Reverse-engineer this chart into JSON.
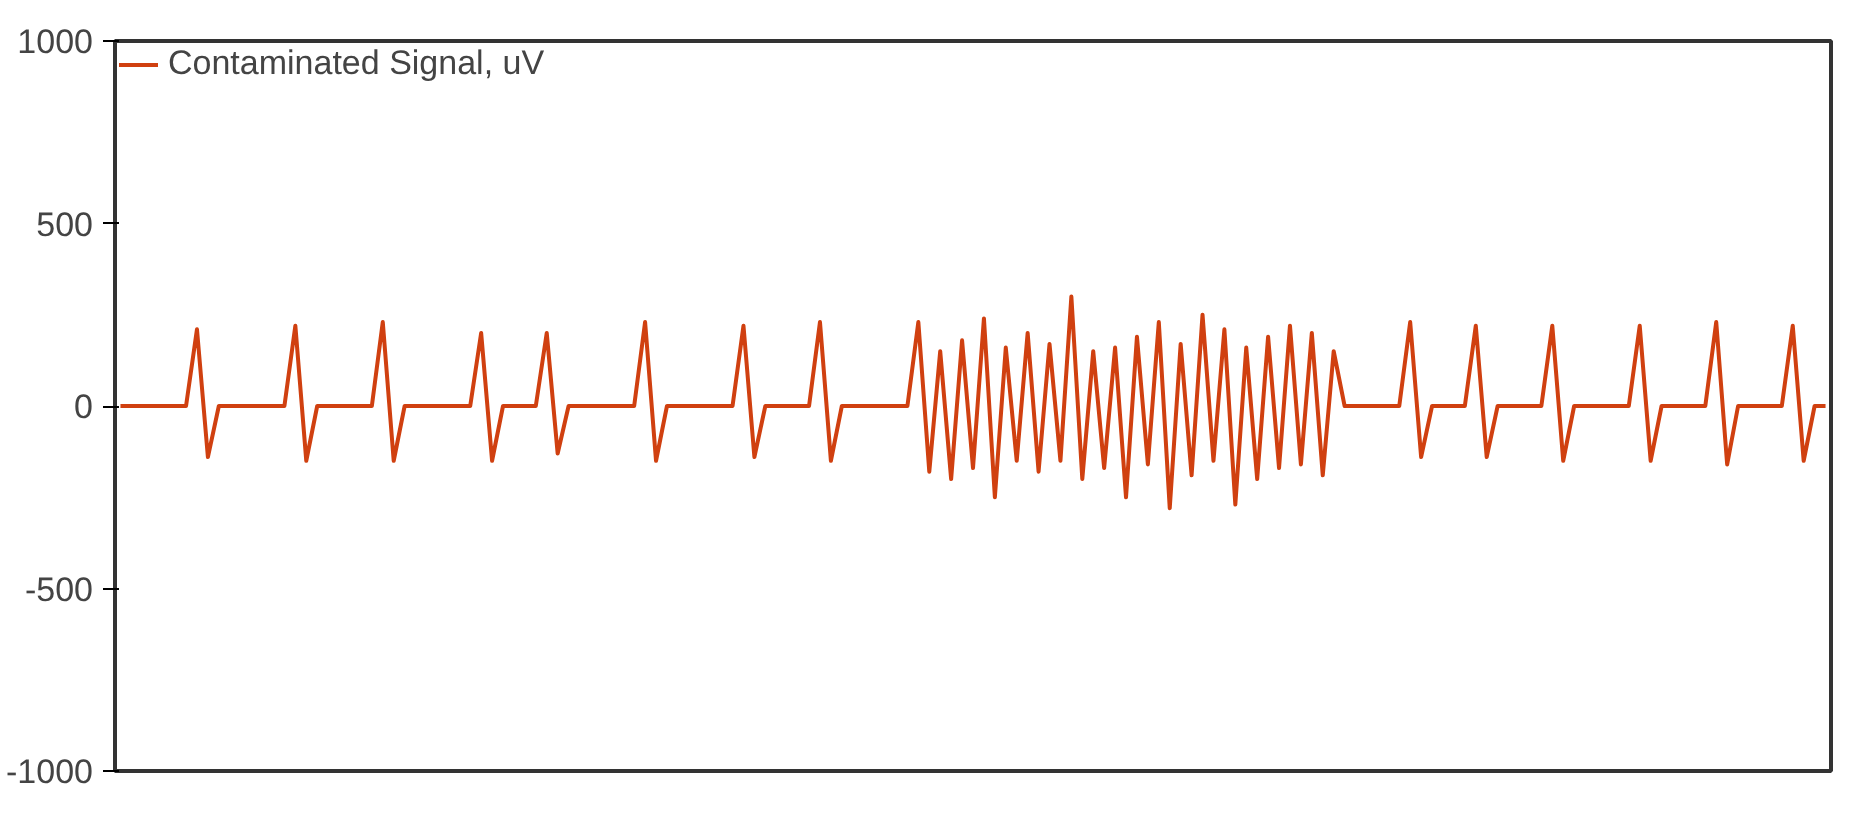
{
  "chart_data": {
    "type": "line",
    "categories": [
      null,
      null,
      null,
      null,
      null,
      null,
      null,
      null,
      null,
      null,
      null,
      null,
      null,
      null,
      null,
      null,
      null,
      null,
      null,
      null,
      null,
      null,
      null,
      null,
      null,
      null,
      null,
      null,
      null,
      null,
      null,
      null,
      null,
      null,
      null,
      null,
      null,
      null,
      null,
      null,
      null,
      null,
      null,
      null,
      null,
      null,
      null,
      null,
      null,
      null,
      null,
      null,
      null,
      null,
      null,
      null,
      null,
      null,
      null,
      null,
      null,
      null,
      null,
      null,
      null,
      null,
      null,
      null,
      null,
      null,
      null,
      null,
      null,
      null,
      null,
      null,
      null,
      null,
      null,
      null,
      null,
      null,
      null,
      null,
      null,
      null,
      null,
      null,
      null,
      null,
      null,
      null,
      null,
      null,
      null,
      null,
      null,
      null,
      null,
      null,
      null,
      null,
      null,
      null,
      null,
      null,
      null,
      null,
      null,
      null,
      null,
      null,
      null,
      null,
      null,
      null,
      null,
      null,
      null,
      null,
      null,
      null,
      null,
      null,
      null,
      null,
      null,
      null,
      null,
      null,
      null,
      null,
      null,
      null,
      null,
      null,
      null,
      null,
      null,
      null,
      null,
      null,
      null,
      null,
      null,
      null,
      null,
      null,
      null,
      null,
      null,
      null,
      null,
      null,
      null,
      null,
      null
    ],
    "series": [
      {
        "name": "Contaminated Signal, uV",
        "color": "#d04010",
        "values": [
          0,
          0,
          0,
          0,
          0,
          0,
          0,
          210,
          -140,
          0,
          0,
          0,
          0,
          0,
          0,
          0,
          220,
          -150,
          0,
          0,
          0,
          0,
          0,
          0,
          230,
          -150,
          0,
          0,
          0,
          0,
          0,
          0,
          0,
          200,
          -150,
          0,
          0,
          0,
          0,
          200,
          -130,
          0,
          0,
          0,
          0,
          0,
          0,
          0,
          230,
          -150,
          0,
          0,
          0,
          0,
          0,
          0,
          0,
          220,
          -140,
          0,
          0,
          0,
          0,
          0,
          230,
          -150,
          0,
          0,
          0,
          0,
          0,
          0,
          0,
          230,
          -180,
          150,
          -200,
          180,
          -170,
          240,
          -250,
          160,
          -150,
          200,
          -180,
          170,
          -150,
          300,
          -200,
          150,
          -170,
          160,
          -250,
          190,
          -160,
          230,
          -280,
          170,
          -190,
          250,
          -150,
          210,
          -270,
          160,
          -200,
          190,
          -170,
          220,
          -160,
          200,
          -190,
          150,
          0,
          0,
          0,
          0,
          0,
          0,
          230,
          -140,
          0,
          0,
          0,
          0,
          220,
          -140,
          0,
          0,
          0,
          0,
          0,
          220,
          -150,
          0,
          0,
          0,
          0,
          0,
          0,
          220,
          -150,
          0,
          0,
          0,
          0,
          0,
          230,
          -160,
          0,
          0,
          0,
          0,
          0,
          220,
          -150,
          0,
          0
        ]
      }
    ],
    "ylim": [
      -1000,
      1000
    ],
    "yticks": [
      -1000,
      -500,
      0,
      500,
      1000
    ],
    "tick_labels": "y",
    "grid": false,
    "legend": "top left",
    "line_style": "solid"
  }
}
